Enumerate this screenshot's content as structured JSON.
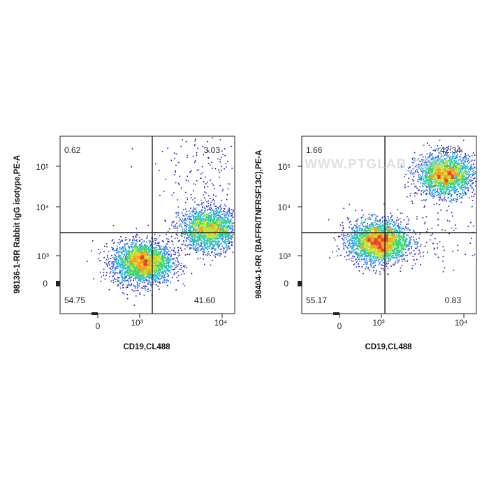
{
  "watermark": "WWW.PTGLAB.COM",
  "colors": {
    "density": [
      "#1a0f8c",
      "#2c36d4",
      "#2f8ce8",
      "#1fc2c8",
      "#3bd46a",
      "#c9de2a",
      "#f2a21c",
      "#e8402a"
    ],
    "gate_line": "#222222",
    "frame": "#222222"
  },
  "chart_data": [
    {
      "type": "scatter",
      "plot_style": "flow-cytometry density dot plot with quadrant gate",
      "xlabel": "CD19,CL488",
      "ylabel": "98136-1-RR Rabbit IgG isotype,PE-A",
      "x_scale": "biexponential",
      "y_scale": "biexponential",
      "x_ticks": [
        "0",
        "10³",
        "10⁴"
      ],
      "y_ticks": [
        "0",
        "10³",
        "10⁴",
        "10⁵"
      ],
      "gate": {
        "x": 1400,
        "y": 2500
      },
      "quadrants": {
        "top_left": "0.62",
        "top_right": "3.03",
        "bottom_left": "54.75",
        "bottom_right": "41.60"
      },
      "populations": [
        {
          "name": "",
          "x_center": 150,
          "y_center": 0,
          "weight": 0.55
        },
        {
          "name": "",
          "x_center": 5500,
          "y_center": 400,
          "weight": 0.42
        },
        {
          "name": "",
          "x_center": 5500,
          "y_center": 20000,
          "weight": 0.03
        }
      ]
    },
    {
      "type": "scatter",
      "plot_style": "flow-cytometry density dot plot with quadrant gate",
      "xlabel": "CD19,CL488",
      "ylabel": "98404-1-RR (BAFFR/TNFRSF13C),PE-A",
      "x_scale": "biexponential",
      "y_scale": "biexponential",
      "x_ticks": [
        "0",
        "10³",
        "10⁴"
      ],
      "y_ticks": [
        "0",
        "10³",
        "10⁴",
        "10⁵"
      ],
      "gate": {
        "x": 1400,
        "y": 2500
      },
      "quadrants": {
        "top_left": "1.66",
        "top_right": "42.34",
        "bottom_left": "55.17",
        "bottom_right": "0.83"
      },
      "populations": [
        {
          "name": "",
          "x_center": 100,
          "y_center": 150,
          "weight": 0.55
        },
        {
          "name": "",
          "x_center": 4200,
          "y_center": 16000,
          "weight": 0.43
        },
        {
          "name": "",
          "x_center": 3000,
          "y_center": 300,
          "weight": 0.02
        }
      ]
    }
  ]
}
